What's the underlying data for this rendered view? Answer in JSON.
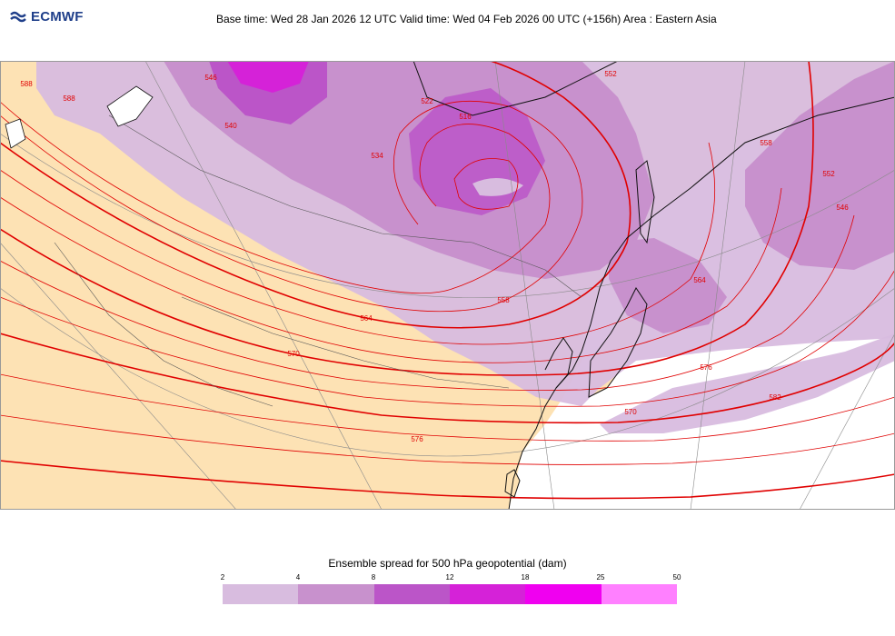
{
  "header": {
    "logo_text": "ECMWF",
    "title": "Base time: Wed 28 Jan 2026 12 UTC Valid time: Wed 04 Feb 2026 00 UTC (+156h) Area : Eastern Asia"
  },
  "map": {
    "land_color": "#fde2b4",
    "contour_color": "#e00000",
    "contour_labels": [
      "516",
      "522",
      "534",
      "540",
      "546",
      "552",
      "558",
      "564",
      "570",
      "576",
      "582",
      "588"
    ]
  },
  "legend": {
    "title": "Ensemble spread for 500 hPa geopotential (dam)",
    "ticks": [
      "2",
      "4",
      "8",
      "12",
      "18",
      "25",
      "50"
    ],
    "colors": [
      "#d8bcdf",
      "#c891cd",
      "#bb55c8",
      "#d522d8",
      "#f000f0",
      "#ff80ff"
    ]
  }
}
